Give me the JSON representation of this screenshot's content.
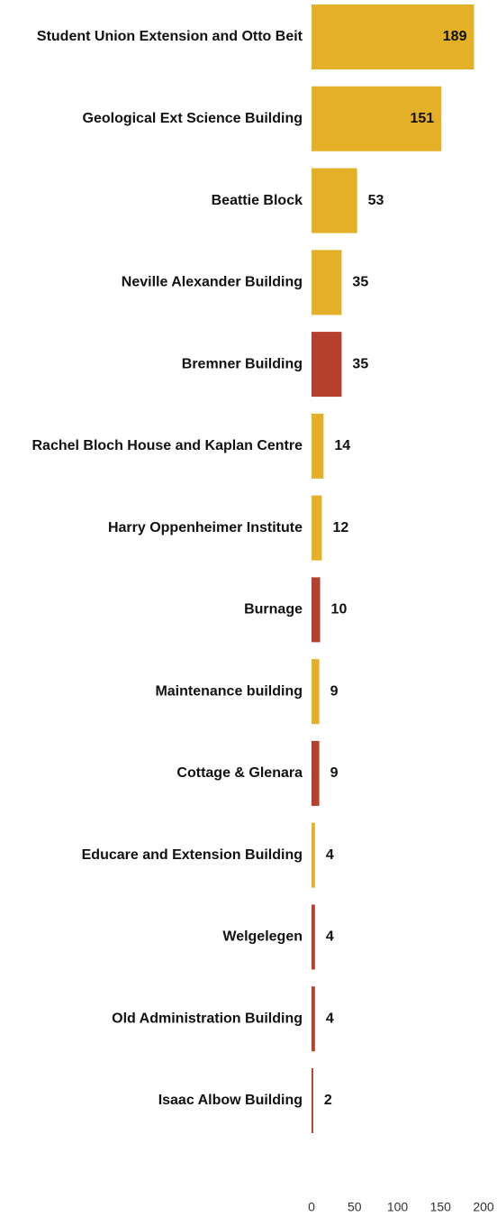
{
  "chart_data": {
    "type": "bar",
    "orientation": "horizontal",
    "categories": [
      "Student Union Extension and Otto Beit",
      "Geological Ext Science Building",
      "Beattie Block",
      "Neville Alexander Building",
      "Bremner Building",
      "Rachel Bloch House and Kaplan Centre",
      "Harry Oppenheimer Institute",
      "Burnage",
      "Maintenance building",
      "Cottage & Glenara",
      "Educare and Extension Building",
      "Welgelegen",
      "Old Administration Building",
      "Isaac Albow Building"
    ],
    "values": [
      189,
      151,
      53,
      35,
      35,
      14,
      12,
      10,
      9,
      9,
      4,
      4,
      4,
      2
    ],
    "colors": [
      "#e3b027",
      "#e3b027",
      "#e3b027",
      "#e3b027",
      "#b5402e",
      "#e3b027",
      "#e3b027",
      "#b5402e",
      "#e3b027",
      "#b5402e",
      "#e3b027",
      "#b5402e",
      "#b5402e",
      "#b5402e"
    ],
    "xlim": [
      0,
      200
    ],
    "xticks": [
      0,
      50,
      100,
      150,
      200
    ]
  }
}
